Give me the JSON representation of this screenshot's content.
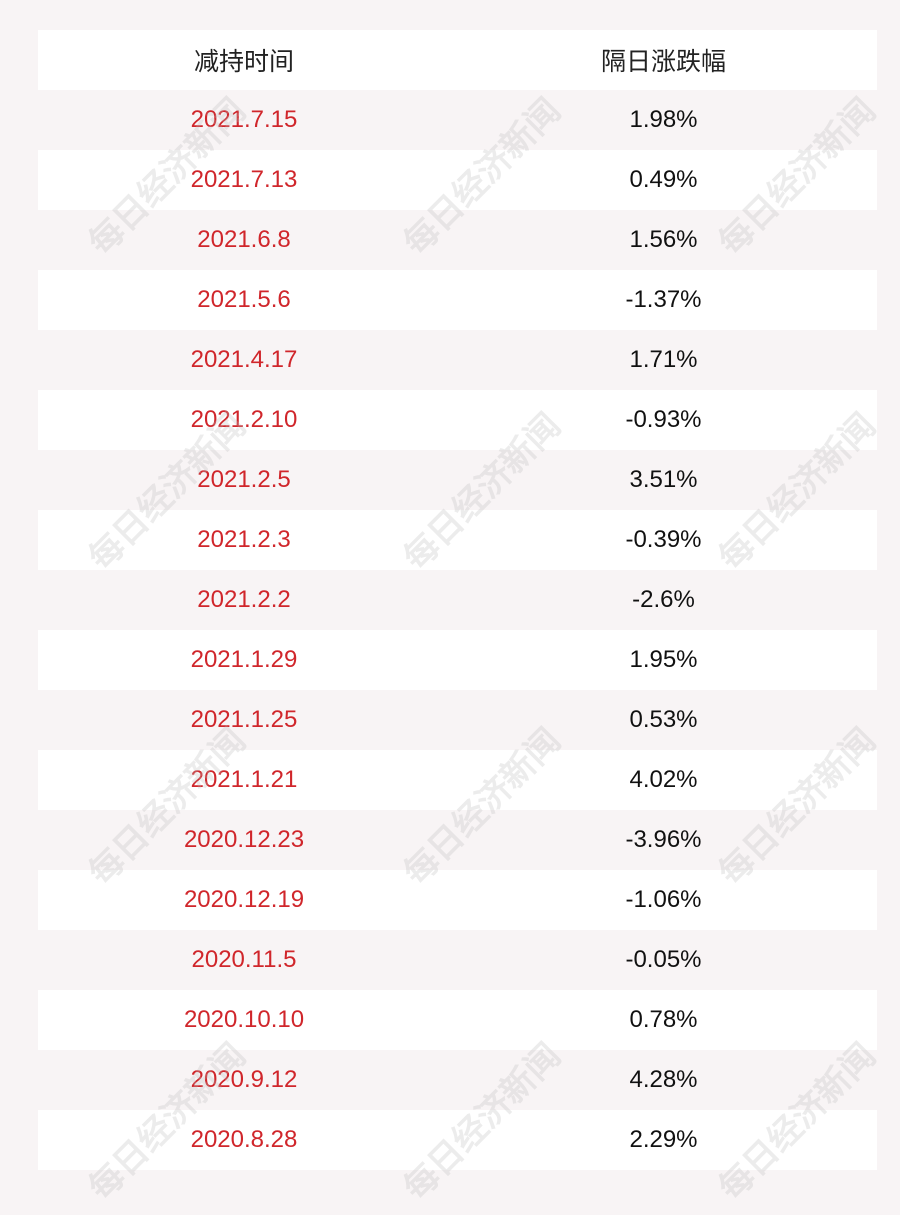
{
  "table": {
    "headers": {
      "date": "减持时间",
      "change": "隔日涨跌幅"
    },
    "rows": [
      {
        "date": "2021.7.15",
        "change": "1.98%"
      },
      {
        "date": "2021.7.13",
        "change": "0.49%"
      },
      {
        "date": "2021.6.8",
        "change": "1.56%"
      },
      {
        "date": "2021.5.6",
        "change": "-1.37%"
      },
      {
        "date": "2021.4.17",
        "change": "1.71%"
      },
      {
        "date": "2021.2.10",
        "change": "-0.93%"
      },
      {
        "date": "2021.2.5",
        "change": "3.51%"
      },
      {
        "date": "2021.2.3",
        "change": "-0.39%"
      },
      {
        "date": "2021.2.2",
        "change": "-2.6%"
      },
      {
        "date": "2021.1.29",
        "change": "1.95%"
      },
      {
        "date": "2021.1.25",
        "change": "0.53%"
      },
      {
        "date": "2021.1.21",
        "change": "4.02%"
      },
      {
        "date": "2020.12.23",
        "change": "-3.96%"
      },
      {
        "date": "2020.12.19",
        "change": "-1.06%"
      },
      {
        "date": "2020.11.5",
        "change": "-0.05%"
      },
      {
        "date": "2020.10.10",
        "change": "0.78%"
      },
      {
        "date": "2020.9.12",
        "change": "4.28%"
      },
      {
        "date": "2020.8.28",
        "change": "2.29%"
      }
    ]
  },
  "watermark": {
    "text": "每日经济新闻"
  },
  "colors": {
    "date_text": "#d0262b",
    "change_text": "#111111",
    "row_white": "#ffffff",
    "row_tint": "#f8f4f5"
  }
}
